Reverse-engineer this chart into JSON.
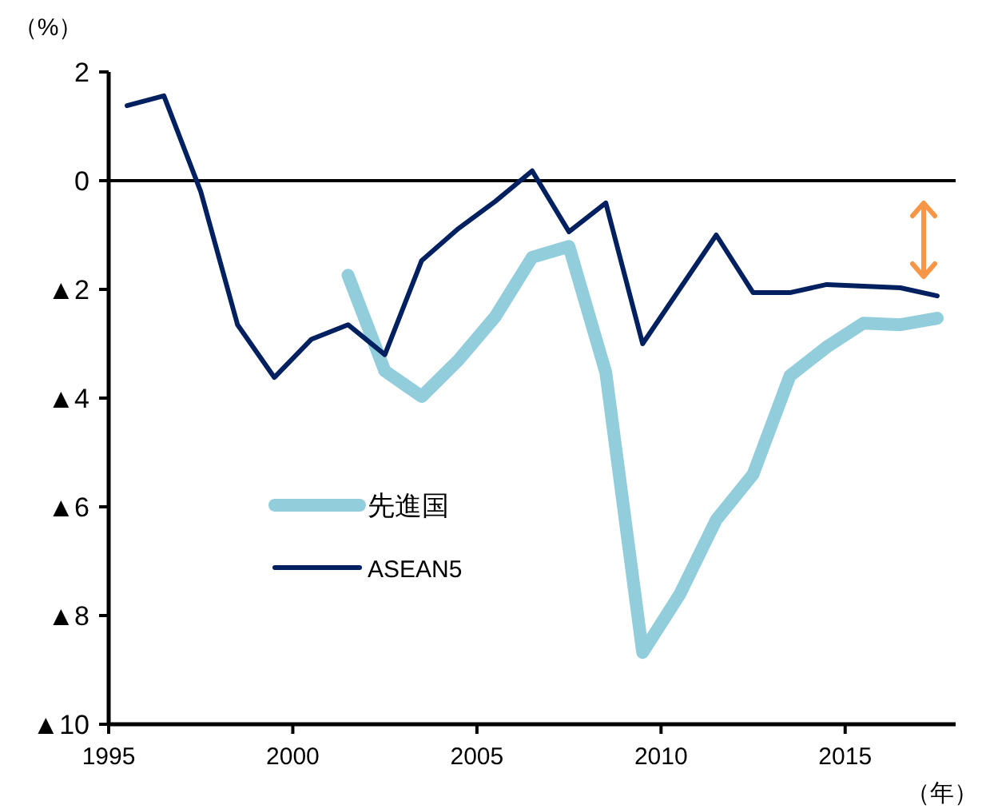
{
  "chart_data": {
    "type": "line",
    "xlabel": "（年）",
    "ylabel": "（%）",
    "xlim": [
      1995,
      2018
    ],
    "xticks": [
      1995,
      2000,
      2005,
      2010,
      2015
    ],
    "ylim": [
      -10,
      2
    ],
    "yticks": [
      2,
      0,
      {
        "value": -2,
        "label": "▲2"
      },
      {
        "value": -4,
        "label": "▲4"
      },
      {
        "value": -6,
        "label": "▲6"
      },
      {
        "value": -8,
        "label": "▲8"
      },
      {
        "value": -10,
        "label": "▲10"
      }
    ],
    "grid": false,
    "legend": "left",
    "marker": "none",
    "line_style": "solid",
    "ref_lines": [
      {
        "axis": "y",
        "value": 0,
        "color": "#000000"
      }
    ],
    "series": [
      {
        "name": "先進国",
        "color": "#92cddc",
        "x": [
          2001.5,
          2002.5,
          2003.5,
          2004.5,
          2005.5,
          2006.5,
          2007.5,
          2008.5,
          2009.5,
          2010.5,
          2011.5,
          2012.5,
          2013.5,
          2014.5,
          2015.5,
          2016.5,
          2017.5
        ],
        "values": [
          -1.74,
          -3.5,
          -3.97,
          -3.3,
          -2.5,
          -1.41,
          -1.21,
          -3.53,
          -8.68,
          -7.62,
          -6.24,
          -5.4,
          -3.59,
          -3.06,
          -2.62,
          -2.65,
          -2.53
        ]
      },
      {
        "name": "ASEAN5",
        "color": "#002060",
        "x": [
          1995.5,
          1996.5,
          1997.5,
          1998.5,
          1999.5,
          2000.5,
          2001.5,
          2002.5,
          2003.5,
          2004.5,
          2005.5,
          2006.5,
          2007.5,
          2008.5,
          2009.5,
          2010.5,
          2011.5,
          2012.5,
          2013.5,
          2014.5,
          2015.5,
          2016.5,
          2017.5
        ],
        "values": [
          1.38,
          1.56,
          -0.2,
          -2.65,
          -3.62,
          -2.92,
          -2.65,
          -3.2,
          -1.47,
          -0.88,
          -0.38,
          0.18,
          -0.94,
          -0.41,
          -3.0,
          -2.0,
          -1.0,
          -2.06,
          -2.06,
          -1.91,
          -1.94,
          -1.97,
          -2.12
        ]
      }
    ]
  }
}
